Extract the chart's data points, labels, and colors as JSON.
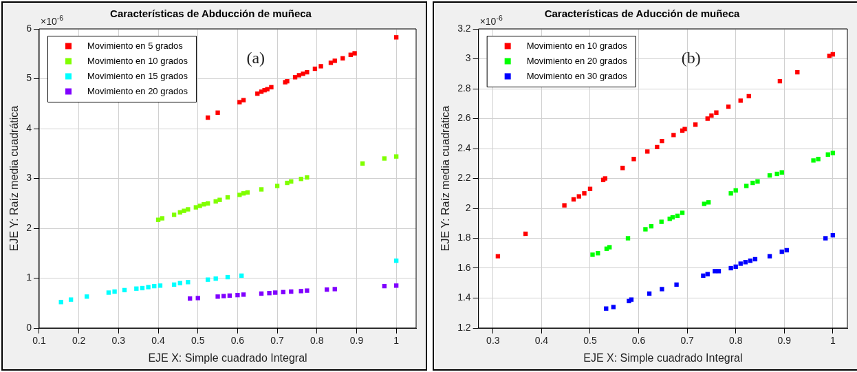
{
  "chart_data": [
    {
      "type": "scatter",
      "title": "Características de Abducción de muñeca",
      "xlabel": "EJE X: Simple cuadrado Integral",
      "ylabel": "EJE Y: Raíz media cuadrática",
      "xlim": [
        0.1,
        1.05
      ],
      "xticks": [
        0.1,
        0.2,
        0.3,
        0.4,
        0.5,
        0.6,
        0.7,
        0.8,
        0.9,
        1
      ],
      "ylim": [
        0,
        6
      ],
      "yticks": [
        0,
        1,
        2,
        3,
        4,
        5,
        6
      ],
      "grid": true,
      "legend": "top left",
      "marker": "square",
      "annotations": [
        "×10$^{-6}$",
        "(a)"
      ],
      "series": [
        {
          "name": "Movimiento en 5 grados",
          "color": "#ff0000",
          "x": [
            0.525,
            0.55,
            0.605,
            0.615,
            0.65,
            0.66,
            0.668,
            0.675,
            0.685,
            0.72,
            0.725,
            0.745,
            0.755,
            0.765,
            0.775,
            0.795,
            0.81,
            0.835,
            0.845,
            0.865,
            0.885,
            0.895,
            1.0
          ],
          "values": [
            4.22,
            4.32,
            4.53,
            4.57,
            4.7,
            4.74,
            4.77,
            4.79,
            4.83,
            4.93,
            4.95,
            5.03,
            5.07,
            5.1,
            5.13,
            5.2,
            5.25,
            5.32,
            5.36,
            5.41,
            5.48,
            5.51,
            5.83
          ]
        },
        {
          "name": "Movimiento en 10 grados",
          "color": "#80ff00",
          "x": [
            0.4,
            0.41,
            0.44,
            0.455,
            0.465,
            0.475,
            0.495,
            0.505,
            0.515,
            0.525,
            0.545,
            0.555,
            0.575,
            0.605,
            0.615,
            0.625,
            0.66,
            0.7,
            0.725,
            0.735,
            0.76,
            0.775,
            0.915,
            0.97,
            1.0
          ],
          "values": [
            2.17,
            2.2,
            2.27,
            2.32,
            2.35,
            2.38,
            2.42,
            2.45,
            2.48,
            2.5,
            2.54,
            2.57,
            2.62,
            2.67,
            2.7,
            2.72,
            2.78,
            2.85,
            2.91,
            2.94,
            2.99,
            3.02,
            3.3,
            3.4,
            3.44
          ]
        },
        {
          "name": "Movimiento en 15 grados",
          "color": "#00ffff",
          "x": [
            0.155,
            0.18,
            0.22,
            0.275,
            0.29,
            0.315,
            0.345,
            0.36,
            0.375,
            0.39,
            0.405,
            0.44,
            0.455,
            0.475,
            0.525,
            0.545,
            0.575,
            0.61,
            1.0
          ],
          "values": [
            0.52,
            0.57,
            0.63,
            0.71,
            0.73,
            0.76,
            0.79,
            0.8,
            0.82,
            0.84,
            0.85,
            0.87,
            0.9,
            0.92,
            0.97,
            0.99,
            1.02,
            1.05,
            1.35
          ]
        },
        {
          "name": "Movimiento en 20 grados",
          "color": "#8000ff",
          "x": [
            0.48,
            0.5,
            0.55,
            0.565,
            0.58,
            0.6,
            0.615,
            0.66,
            0.68,
            0.695,
            0.715,
            0.735,
            0.76,
            0.775,
            0.825,
            0.845,
            0.97,
            1.0
          ],
          "values": [
            0.59,
            0.6,
            0.63,
            0.64,
            0.65,
            0.66,
            0.67,
            0.69,
            0.7,
            0.71,
            0.72,
            0.73,
            0.74,
            0.75,
            0.77,
            0.78,
            0.84,
            0.85
          ]
        }
      ]
    },
    {
      "type": "scatter",
      "title": "Características de Aducción de muñeca",
      "xlabel": "EJE X: Simple cuadrado Integral",
      "ylabel": "EJE Y: Raíz media cuadrática",
      "xlim": [
        0.27,
        1.03
      ],
      "xticks": [
        0.3,
        0.4,
        0.5,
        0.6,
        0.7,
        0.8,
        0.9,
        1
      ],
      "ylim": [
        1.2,
        3.2
      ],
      "yticks": [
        1.2,
        1.4,
        1.6,
        1.8,
        2,
        2.2,
        2.4,
        2.6,
        2.8,
        3,
        3.2
      ],
      "grid": true,
      "legend": "top left",
      "marker": "square",
      "annotations": [
        "×10$^{-6}$",
        "(b)"
      ],
      "series": [
        {
          "name": "Movimiento en 10 grados",
          "color": "#ff0000",
          "x": [
            0.31,
            0.367,
            0.447,
            0.466,
            0.477,
            0.488,
            0.5,
            0.527,
            0.531,
            0.567,
            0.59,
            0.618,
            0.638,
            0.648,
            0.672,
            0.69,
            0.695,
            0.717,
            0.742,
            0.75,
            0.76,
            0.785,
            0.81,
            0.827,
            0.891,
            0.927,
            0.993,
            1.0
          ],
          "values": [
            1.68,
            1.83,
            2.02,
            2.06,
            2.08,
            2.1,
            2.13,
            2.19,
            2.2,
            2.27,
            2.33,
            2.38,
            2.41,
            2.45,
            2.49,
            2.52,
            2.53,
            2.56,
            2.6,
            2.62,
            2.64,
            2.68,
            2.72,
            2.75,
            2.85,
            2.91,
            3.02,
            3.03
          ]
        },
        {
          "name": "Movimiento en 20 grados",
          "color": "#00ff00",
          "x": [
            0.505,
            0.516,
            0.534,
            0.54,
            0.578,
            0.614,
            0.626,
            0.647,
            0.664,
            0.67,
            0.68,
            0.69,
            0.735,
            0.744,
            0.79,
            0.8,
            0.822,
            0.835,
            0.845,
            0.87,
            0.885,
            0.895,
            0.96,
            0.97,
            0.99,
            1.0
          ],
          "values": [
            1.69,
            1.7,
            1.73,
            1.74,
            1.8,
            1.86,
            1.88,
            1.91,
            1.93,
            1.94,
            1.95,
            1.97,
            2.03,
            2.04,
            2.1,
            2.12,
            2.15,
            2.17,
            2.18,
            2.22,
            2.23,
            2.24,
            2.32,
            2.33,
            2.36,
            2.37
          ]
        },
        {
          "name": "Movimiento en 30 grados",
          "color": "#0000ff",
          "x": [
            0.533,
            0.548,
            0.58,
            0.585,
            0.622,
            0.648,
            0.678,
            0.733,
            0.742,
            0.757,
            0.765,
            0.79,
            0.8,
            0.81,
            0.82,
            0.83,
            0.84,
            0.87,
            0.895,
            0.905,
            0.985,
            1.0
          ],
          "values": [
            1.33,
            1.34,
            1.38,
            1.39,
            1.43,
            1.46,
            1.49,
            1.55,
            1.56,
            1.58,
            1.58,
            1.6,
            1.61,
            1.63,
            1.64,
            1.65,
            1.66,
            1.68,
            1.71,
            1.72,
            1.8,
            1.82
          ]
        }
      ]
    }
  ]
}
